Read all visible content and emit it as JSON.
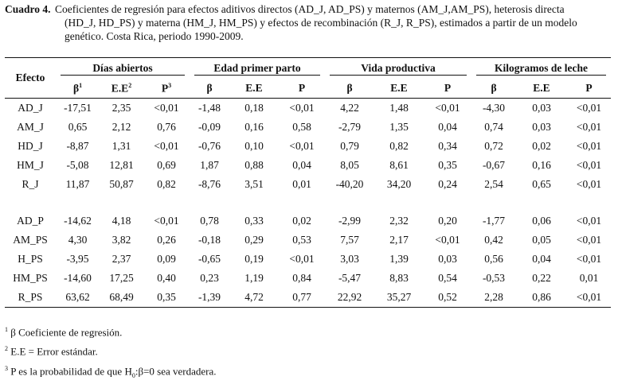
{
  "caption": {
    "label": "Cuadro 4",
    "line1": "Coeficientes de regresión para efectos aditivos directos (AD_J, AD_PS) y maternos (AM_J,AM_PS), heterosis directa",
    "line2": "(HD_J, HD_PS) y materna (HM_J, HM_PS) y efectos de recombinación (R_J, R_PS), estimados a partir de un modelo",
    "line3": "genético. Costa Rica, periodo 1990-2009."
  },
  "table": {
    "effect_header": "Efecto",
    "groups": [
      "Días abiertos",
      "Edad primer parto",
      "Vida productiva",
      "Kilogramos de leche"
    ],
    "subheaders": {
      "beta": "β",
      "beta_sup": "1",
      "ee": "E.E",
      "ee_sup": "2",
      "p": "P",
      "p_sup": "3"
    },
    "block1": [
      {
        "effect": "AD_J",
        "v": [
          "-17,51",
          "2,35",
          "<0,01",
          "-1,48",
          "0,18",
          "<0,01",
          "4,22",
          "1,48",
          "<0,01",
          "-4,30",
          "0,03",
          "<0,01"
        ]
      },
      {
        "effect": "AM_J",
        "v": [
          "0,65",
          "2,12",
          "0,76",
          "-0,09",
          "0,16",
          "0,58",
          "-2,79",
          "1,35",
          "0,04",
          "0,74",
          "0,03",
          "<0,01"
        ]
      },
      {
        "effect": "HD_J",
        "v": [
          "-8,87",
          "1,31",
          "<0,01",
          "-0,76",
          "0,10",
          "<0,01",
          "0,79",
          "0,82",
          "0,34",
          "0,72",
          "0,02",
          "<0,01"
        ]
      },
      {
        "effect": "HM_J",
        "v": [
          "-5,08",
          "12,81",
          "0,69",
          "1,87",
          "0,88",
          "0,04",
          "8,05",
          "8,61",
          "0,35",
          "-0,67",
          "0,16",
          "<0,01"
        ]
      },
      {
        "effect": "R_J",
        "v": [
          "11,87",
          "50,87",
          "0,82",
          "-8,76",
          "3,51",
          "0,01",
          "-40,20",
          "34,20",
          "0,24",
          "2,54",
          "0,65",
          "<0,01"
        ]
      }
    ],
    "block2": [
      {
        "effect": "AD_P",
        "v": [
          "-14,62",
          "4,18",
          "<0,01",
          "0,78",
          "0,33",
          "0,02",
          "-2,99",
          "2,32",
          "0,20",
          "-1,77",
          "0,06",
          "<0,01"
        ]
      },
      {
        "effect": "AM_PS",
        "v": [
          "4,30",
          "3,82",
          "0,26",
          "-0,18",
          "0,29",
          "0,53",
          "7,57",
          "2,17",
          "<0,01",
          "0,42",
          "0,05",
          "<0,01"
        ]
      },
      {
        "effect": "H_PS",
        "v": [
          "-3,95",
          "2,37",
          "0,09",
          "-0,65",
          "0,19",
          "<0,01",
          "3,03",
          "1,39",
          "0,03",
          "0,56",
          "0,04",
          "<0,01"
        ]
      },
      {
        "effect": "HM_PS",
        "v": [
          "-14,60",
          "17,25",
          "0,40",
          "0,23",
          "1,19",
          "0,84",
          "-5,47",
          "8,83",
          "0,54",
          "-0,53",
          "0,22",
          "0,01"
        ]
      },
      {
        "effect": "R_PS",
        "v": [
          "63,62",
          "68,49",
          "0,35",
          "-1,39",
          "4,72",
          "0,77",
          "22,92",
          "35,27",
          "0,52",
          "2,28",
          "0,86",
          "<0,01"
        ]
      }
    ]
  },
  "notes": {
    "n1_sup": "1",
    "n1": "β Coeficiente de regresión.",
    "n2_sup": "2",
    "n2": "E.E = Error estándar.",
    "n3_sup": "3",
    "n3_a": "P es la probabilidad de que H",
    "n3_sub": "0",
    "n3_b": ":β=0 sea verdadera."
  }
}
